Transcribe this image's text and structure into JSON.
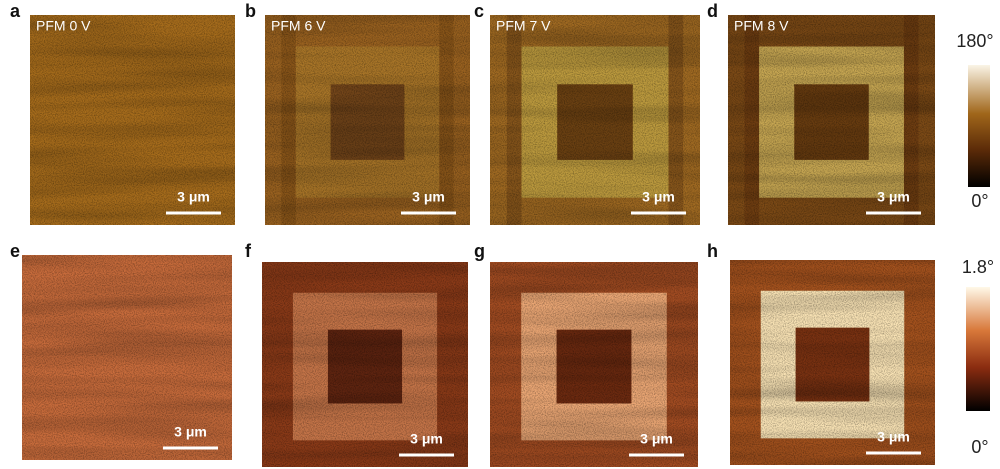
{
  "panels": [
    {
      "letter": "a",
      "label": "PFM 0 V",
      "scale_bar": "3 μm"
    },
    {
      "letter": "b",
      "label": "PFM 6 V",
      "scale_bar": "3 μm"
    },
    {
      "letter": "c",
      "label": "PFM 7 V",
      "scale_bar": "3 μm"
    },
    {
      "letter": "d",
      "label": "PFM 8 V",
      "scale_bar": "3 μm"
    },
    {
      "letter": "e",
      "scale_bar": "3 μm"
    },
    {
      "letter": "f",
      "scale_bar": "3 μm"
    },
    {
      "letter": "g",
      "scale_bar": "3 μm"
    },
    {
      "letter": "h",
      "scale_bar": "3 μm"
    }
  ],
  "colorbars": [
    {
      "max": "180°",
      "min": "0°"
    },
    {
      "max": "1.8°",
      "min": "0°"
    }
  ]
}
